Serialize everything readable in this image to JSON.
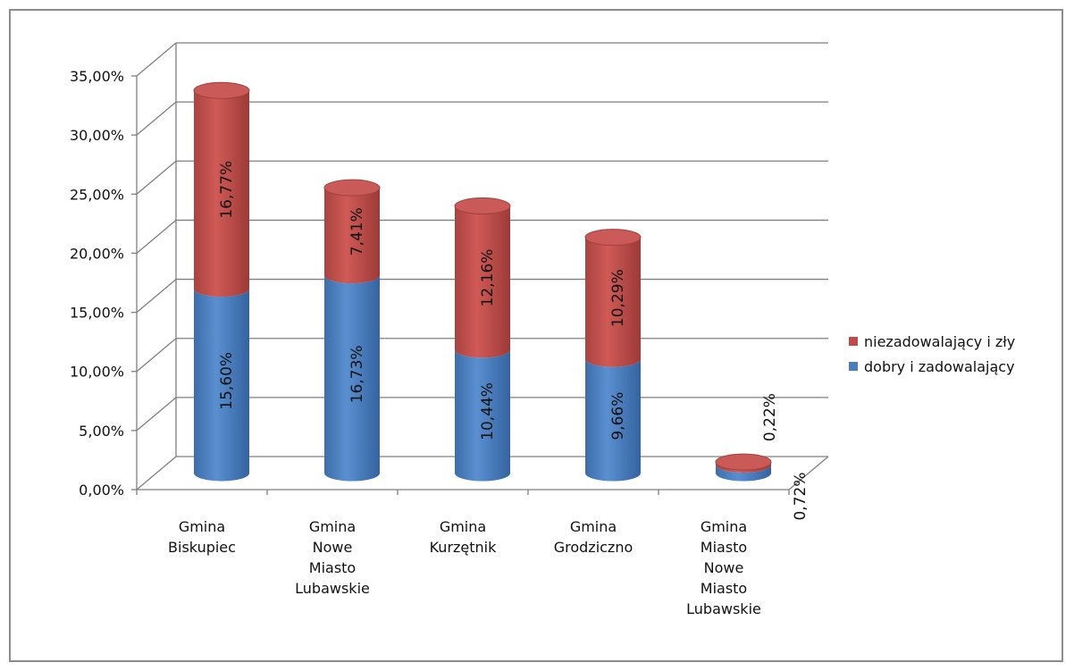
{
  "chart_data": {
    "type": "bar",
    "stacked": true,
    "style": "3d-cylinder",
    "categories": [
      [
        "Gmina",
        "Biskupiec"
      ],
      [
        "Gmina",
        "Nowe",
        "Miasto",
        "Lubawskie"
      ],
      [
        "Gmina",
        "Kurzętnik"
      ],
      [
        "Gmina",
        "Grodziczno"
      ],
      [
        "Gmina",
        "Miasto",
        "Nowe",
        "Miasto",
        "Lubawskie"
      ]
    ],
    "series": [
      {
        "name": "dobry i zadowalający",
        "color": "#4a7ebb",
        "values": [
          15.6,
          16.73,
          10.44,
          9.66,
          0.72
        ],
        "labels": [
          "15,60%",
          "16,73%",
          "10,44%",
          "9,66%",
          "0,72%"
        ]
      },
      {
        "name": "niezadowalający i zły",
        "color": "#be4b48",
        "values": [
          16.77,
          7.41,
          12.16,
          10.29,
          0.22
        ],
        "labels": [
          "16,77%",
          "7,41%",
          "12,16%",
          "10,29%",
          "0,22%"
        ]
      }
    ],
    "y_ticks": [
      0,
      5,
      10,
      15,
      20,
      25,
      30,
      35
    ],
    "y_tick_labels": [
      "0,00%",
      "5,00%",
      "10,00%",
      "15,00%",
      "20,00%",
      "25,00%",
      "30,00%",
      "35,00%"
    ],
    "ylim": [
      0,
      35
    ],
    "grid": true,
    "legend_position": "right",
    "legend_order": [
      "niezadowalający i zły",
      "dobry i zadowalający"
    ]
  }
}
